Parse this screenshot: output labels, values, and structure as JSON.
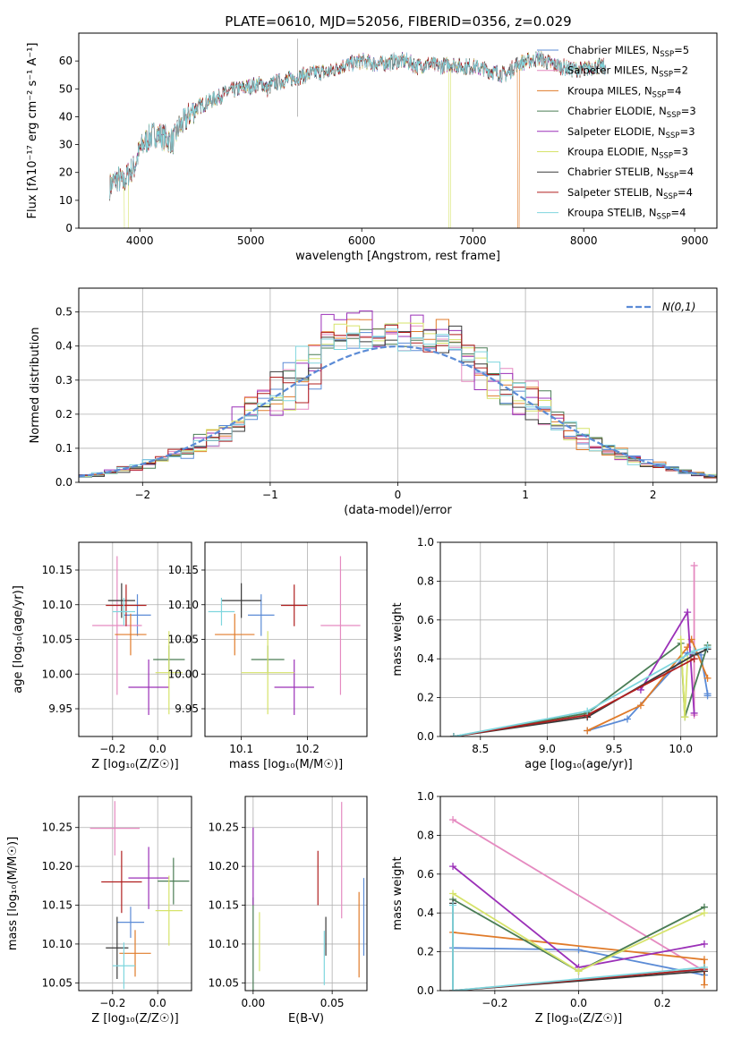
{
  "title": "PLATE=0610, MJD=52056, FIBERID=0356, z=0.029",
  "colors": {
    "Chabrier MILES": "#5b8bd6",
    "Salpeter MILES": "#e58ac0",
    "Kroupa MILES": "#e07b2a",
    "Chabrier ELODIE": "#4a7d55",
    "Salpeter ELODIE": "#9b30b8",
    "Kroupa ELODIE": "#d6e36a",
    "Chabrier STELIB": "#3a3a3a",
    "Salpeter STELIB": "#b01f1f",
    "Kroupa STELIB": "#7fd6de",
    "gauss": "#5b8bd6"
  },
  "chart_data": [
    {
      "id": "spectrum",
      "type": "line",
      "title": "PLATE=0610, MJD=52056, FIBERID=0356, z=0.029",
      "xlabel": "wavelength [Angstrom, rest frame]",
      "ylabel": "Flux [fλ10⁻¹⁷ erg cm⁻² s⁻¹ A⁻¹]",
      "xlim": [
        3450,
        9200
      ],
      "ylim": [
        0,
        70
      ],
      "xticks": [
        4000,
        5000,
        6000,
        7000,
        8000,
        9000
      ],
      "yticks": [
        0,
        10,
        20,
        30,
        40,
        50,
        60
      ],
      "legend_position": "upper right",
      "series": [
        {
          "name": "Chabrier MILES, N",
          "nssp": "5"
        },
        {
          "name": "Salpeter MILES, N",
          "nssp": "2"
        },
        {
          "name": "Kroupa MILES, N",
          "nssp": "4"
        },
        {
          "name": "Chabrier ELODIE, N",
          "nssp": "3"
        },
        {
          "name": "Salpeter ELODIE, N",
          "nssp": "3"
        },
        {
          "name": "Kroupa ELODIE, N",
          "nssp": "3"
        },
        {
          "name": "Chabrier STELIB, N",
          "nssp": "4"
        },
        {
          "name": "Salpeter STELIB, N",
          "nssp": "4"
        },
        {
          "name": "Kroupa STELIB, N",
          "nssp": "4"
        }
      ],
      "envelope": {
        "x": [
          3730,
          3800,
          3850,
          3900,
          3950,
          4000,
          4050,
          4100,
          4150,
          4200,
          4250,
          4300,
          4350,
          4400,
          4450,
          4500,
          4600,
          4700,
          4800,
          4900,
          5000,
          5100,
          5150,
          5200,
          5300,
          5400,
          5500,
          5600,
          5700,
          5800,
          5900,
          6000,
          6100,
          6200,
          6300,
          6400,
          6500,
          6600,
          6700,
          6800,
          6900,
          7000,
          7100,
          7200,
          7300,
          7400,
          7500,
          7600,
          7700,
          7800,
          7900,
          8000,
          8100,
          8200
        ],
        "y": [
          15,
          18,
          16,
          20,
          22,
          28,
          31,
          33,
          34,
          33,
          32,
          31,
          36,
          38,
          41,
          43,
          45,
          47,
          49,
          50,
          51,
          52,
          50,
          52,
          53,
          54,
          55,
          56,
          56,
          58,
          59,
          60,
          59,
          59,
          60,
          60,
          58,
          59,
          58,
          59,
          58,
          58,
          57,
          56,
          55,
          59,
          60,
          61,
          59,
          58,
          57,
          57,
          58,
          58
        ]
      },
      "drops": [
        {
          "series": "Kroupa ELODIE",
          "x_from": 3860,
          "x_to": 3895
        },
        {
          "series": "Kroupa ELODIE",
          "x_from": 6785,
          "x_to": 6800
        },
        {
          "series": "Kroupa MILES",
          "x_from": 7405,
          "x_to": 7420
        }
      ]
    },
    {
      "id": "residuals",
      "type": "histogram",
      "xlabel": "(data-model)/error",
      "ylabel": "Normed distribution",
      "xlim": [
        -2.5,
        2.5
      ],
      "ylim": [
        0,
        0.57
      ],
      "xticks": [
        -2,
        -1,
        0,
        1,
        2
      ],
      "yticks": [
        0.0,
        0.1,
        0.2,
        0.3,
        0.4,
        0.5
      ],
      "gauss_label": "N(0,1)",
      "bin_width": 0.1,
      "peak_heights": [
        0.44,
        0.47,
        0.49,
        0.43,
        0.51,
        0.47,
        0.46,
        0.44,
        0.45
      ],
      "legend_position": "upper right",
      "grid": true
    },
    {
      "id": "age_vs_Z",
      "type": "errorbar",
      "xlabel": "Z [log₁₀(Z/Z☉)]",
      "ylabel": "age  [log₁₀(age/yr)]",
      "xlim": [
        -0.35,
        0.15
      ],
      "ylim": [
        9.91,
        10.19
      ],
      "xticks": [
        -0.2,
        0.0
      ],
      "yticks": [
        9.95,
        10.0,
        10.05,
        10.1,
        10.15
      ],
      "points": [
        {
          "series": "Chabrier MILES",
          "x": -0.09,
          "xe": 0.06,
          "y": 10.085,
          "ye": 0.03
        },
        {
          "series": "Salpeter MILES",
          "x": -0.18,
          "xe": 0.11,
          "y": 10.07,
          "ye": 0.1
        },
        {
          "series": "Kroupa MILES",
          "x": -0.12,
          "xe": 0.07,
          "y": 10.057,
          "ye": 0.03
        },
        {
          "series": "Chabrier ELODIE",
          "x": 0.05,
          "xe": 0.07,
          "y": 10.021,
          "ye": 0.02
        },
        {
          "series": "Salpeter ELODIE",
          "x": -0.04,
          "xe": 0.09,
          "y": 9.981,
          "ye": 0.04
        },
        {
          "series": "Kroupa ELODIE",
          "x": 0.05,
          "xe": 0.06,
          "y": 10.002,
          "ye": 0.06
        },
        {
          "series": "Chabrier STELIB",
          "x": -0.16,
          "xe": 0.06,
          "y": 10.106,
          "ye": 0.025
        },
        {
          "series": "Salpeter STELIB",
          "x": -0.14,
          "xe": 0.09,
          "y": 10.099,
          "ye": 0.03
        },
        {
          "series": "Kroupa STELIB",
          "x": -0.15,
          "xe": 0.05,
          "y": 10.09,
          "ye": 0.02
        }
      ]
    },
    {
      "id": "age_vs_mass",
      "type": "errorbar",
      "xlabel": "mass [log₁₀(M/M☉)]",
      "ylabel": "",
      "xlim": [
        10.045,
        10.29
      ],
      "ylim": [
        9.91,
        10.19
      ],
      "xticks": [
        10.1,
        10.2
      ],
      "yticks": [
        9.95,
        10.0,
        10.05,
        10.1,
        10.15
      ],
      "points": [
        {
          "series": "Chabrier MILES",
          "x": 10.13,
          "xe": 0.02,
          "y": 10.085,
          "ye": 0.03
        },
        {
          "series": "Salpeter MILES",
          "x": 10.25,
          "xe": 0.03,
          "y": 10.07,
          "ye": 0.1
        },
        {
          "series": "Kroupa MILES",
          "x": 10.09,
          "xe": 0.03,
          "y": 10.057,
          "ye": 0.03
        },
        {
          "series": "Chabrier ELODIE",
          "x": 10.14,
          "xe": 0.025,
          "y": 10.021,
          "ye": 0.02
        },
        {
          "series": "Salpeter ELODIE",
          "x": 10.18,
          "xe": 0.03,
          "y": 9.981,
          "ye": 0.04
        },
        {
          "series": "Kroupa ELODIE",
          "x": 10.14,
          "xe": 0.04,
          "y": 10.002,
          "ye": 0.06
        },
        {
          "series": "Chabrier STELIB",
          "x": 10.1,
          "xe": 0.03,
          "y": 10.106,
          "ye": 0.025
        },
        {
          "series": "Salpeter STELIB",
          "x": 10.18,
          "xe": 0.02,
          "y": 10.099,
          "ye": 0.03
        },
        {
          "series": "Kroupa STELIB",
          "x": 10.07,
          "xe": 0.02,
          "y": 10.09,
          "ye": 0.02
        }
      ]
    },
    {
      "id": "weight_vs_age",
      "type": "line",
      "xlabel": "age  [log₁₀(age/yr)]",
      "ylabel": "mass weight",
      "xlim": [
        8.2,
        10.27
      ],
      "ylim": [
        0,
        1.0
      ],
      "xticks": [
        8.5,
        9.0,
        9.5,
        10.0
      ],
      "yticks": [
        0.0,
        0.2,
        0.4,
        0.6,
        0.8,
        1.0
      ],
      "grid": true,
      "series": [
        {
          "name": "Chabrier MILES",
          "points": [
            [
              9.3,
              0.03
            ],
            [
              9.6,
              0.09
            ],
            [
              10.05,
              0.43
            ],
            [
              10.1,
              0.43
            ],
            [
              10.15,
              0.42
            ],
            [
              10.2,
              0.22
            ],
            [
              10.2,
              0.21
            ]
          ]
        },
        {
          "name": "Salpeter MILES",
          "points": [
            [
              10.1,
              0.11
            ],
            [
              10.1,
              0.88
            ]
          ]
        },
        {
          "name": "Kroupa MILES",
          "points": [
            [
              9.3,
              0.03
            ],
            [
              9.7,
              0.16
            ],
            [
              10.05,
              0.46
            ],
            [
              10.08,
              0.5
            ],
            [
              10.2,
              0.3
            ]
          ]
        },
        {
          "name": "Chabrier ELODIE",
          "points": [
            [
              8.3,
              0.0
            ],
            [
              9.3,
              0.12
            ],
            [
              10.0,
              0.48
            ],
            [
              10.03,
              0.1
            ],
            [
              10.2,
              0.47
            ]
          ]
        },
        {
          "name": "Salpeter ELODIE",
          "points": [
            [
              9.7,
              0.24
            ],
            [
              10.05,
              0.64
            ],
            [
              10.1,
              0.12
            ]
          ]
        },
        {
          "name": "Kroupa ELODIE",
          "points": [
            [
              10.0,
              0.5
            ],
            [
              10.03,
              0.1
            ],
            [
              10.05,
              0.4
            ]
          ]
        },
        {
          "name": "Chabrier STELIB",
          "points": [
            [
              8.3,
              0.0
            ],
            [
              9.3,
              0.1
            ],
            [
              10.1,
              0.42
            ],
            [
              10.2,
              0.45
            ]
          ]
        },
        {
          "name": "Salpeter STELIB",
          "points": [
            [
              8.3,
              0.0
            ],
            [
              9.3,
              0.11
            ],
            [
              10.1,
              0.4
            ]
          ]
        },
        {
          "name": "Kroupa STELIB",
          "points": [
            [
              8.3,
              0.0
            ],
            [
              9.3,
              0.13
            ],
            [
              10.1,
              0.44
            ],
            [
              10.2,
              0.46
            ]
          ]
        }
      ]
    },
    {
      "id": "mass_vs_Z",
      "type": "errorbar",
      "xlabel": "Z [log₁₀(Z/Z☉)]",
      "ylabel": "mass [log₁₀(M/M☉)]",
      "xlim": [
        -0.35,
        0.15
      ],
      "ylim": [
        10.04,
        10.29
      ],
      "xticks": [
        -0.2,
        0.0
      ],
      "yticks": [
        10.05,
        10.1,
        10.15,
        10.2,
        10.25
      ],
      "points": [
        {
          "series": "Chabrier MILES",
          "x": -0.12,
          "xe": 0.06,
          "y": 10.128,
          "ye": 0.02
        },
        {
          "series": "Salpeter MILES",
          "x": -0.19,
          "xe": 0.11,
          "y": 10.249,
          "ye": 0.035
        },
        {
          "series": "Kroupa MILES",
          "x": -0.1,
          "xe": 0.07,
          "y": 10.088,
          "ye": 0.03
        },
        {
          "series": "Chabrier ELODIE",
          "x": 0.07,
          "xe": 0.07,
          "y": 10.181,
          "ye": 0.03
        },
        {
          "series": "Salpeter ELODIE",
          "x": -0.04,
          "xe": 0.09,
          "y": 10.185,
          "ye": 0.04
        },
        {
          "series": "Kroupa ELODIE",
          "x": 0.05,
          "xe": 0.06,
          "y": 10.143,
          "ye": 0.045
        },
        {
          "series": "Chabrier STELIB",
          "x": -0.18,
          "xe": 0.05,
          "y": 10.095,
          "ye": 0.04
        },
        {
          "series": "Salpeter STELIB",
          "x": -0.16,
          "xe": 0.09,
          "y": 10.18,
          "ye": 0.04
        },
        {
          "series": "Kroupa STELIB",
          "x": -0.15,
          "xe": 0.05,
          "y": 10.072,
          "ye": 0.03
        }
      ]
    },
    {
      "id": "mass_vs_EBV",
      "type": "errorbar",
      "xlabel": "E(B-V)",
      "ylabel": "",
      "xlim": [
        -0.005,
        0.072
      ],
      "ylim": [
        10.04,
        10.29
      ],
      "xticks": [
        0.0,
        0.05
      ],
      "yticks": [
        10.05,
        10.1,
        10.15,
        10.2,
        10.25
      ],
      "points": [
        {
          "series": "Chabrier MILES",
          "x": 0.07,
          "xe": 0,
          "y": 10.135,
          "ye": 0.05
        },
        {
          "series": "Salpeter MILES",
          "x": 0.056,
          "xe": 0,
          "y": 10.208,
          "ye": 0.075
        },
        {
          "series": "Kroupa MILES",
          "x": 0.067,
          "xe": 0,
          "y": 10.112,
          "ye": 0.055
        },
        {
          "series": "Chabrier ELODIE",
          "x": 0.0,
          "xe": 0,
          "y": 10.1,
          "ye": 0.06
        },
        {
          "series": "Salpeter ELODIE",
          "x": 0.0,
          "xe": 0,
          "y": 10.2,
          "ye": 0.05
        },
        {
          "series": "Kroupa ELODIE",
          "x": 0.004,
          "xe": 0,
          "y": 10.103,
          "ye": 0.038
        },
        {
          "series": "Chabrier STELIB",
          "x": 0.046,
          "xe": 0,
          "y": 10.11,
          "ye": 0.025
        },
        {
          "series": "Salpeter STELIB",
          "x": 0.041,
          "xe": 0,
          "y": 10.185,
          "ye": 0.035
        },
        {
          "series": "Kroupa STELIB",
          "x": 0.045,
          "xe": 0,
          "y": 10.082,
          "ye": 0.035
        }
      ]
    },
    {
      "id": "weight_vs_Z",
      "type": "line",
      "xlabel": "Z [log₁₀(Z/Z☉)]",
      "ylabel": "mass weight",
      "xlim": [
        -0.33,
        0.33
      ],
      "ylim": [
        0,
        1.0
      ],
      "xticks": [
        -0.2,
        0.0,
        0.2
      ],
      "yticks": [
        0.0,
        0.2,
        0.4,
        0.6,
        0.8,
        1.0
      ],
      "grid": true,
      "series": [
        {
          "name": "Chabrier MILES",
          "points": [
            [
              -0.3,
              0.22
            ],
            [
              0.0,
              0.21
            ],
            [
              0.3,
              0.08
            ]
          ]
        },
        {
          "name": "Salpeter MILES",
          "points": [
            [
              -0.3,
              0.88
            ],
            [
              0.3,
              0.1
            ]
          ]
        },
        {
          "name": "Kroupa MILES",
          "points": [
            [
              -0.3,
              0.3
            ],
            [
              0.3,
              0.16
            ],
            [
              0.3,
              0.03
            ]
          ]
        },
        {
          "name": "Chabrier ELODIE",
          "points": [
            [
              -0.3,
              0.47
            ],
            [
              0.0,
              0.1
            ],
            [
              0.3,
              0.43
            ]
          ]
        },
        {
          "name": "Salpeter ELODIE",
          "points": [
            [
              -0.3,
              0.64
            ],
            [
              0.0,
              0.12
            ],
            [
              0.3,
              0.24
            ]
          ]
        },
        {
          "name": "Kroupa ELODIE",
          "points": [
            [
              -0.3,
              0.5
            ],
            [
              0.0,
              0.1
            ],
            [
              0.3,
              0.4
            ]
          ]
        },
        {
          "name": "Chabrier STELIB",
          "points": [
            [
              -0.3,
              0.45
            ],
            [
              -0.3,
              0.0
            ],
            [
              0.3,
              0.1
            ]
          ]
        },
        {
          "name": "Salpeter STELIB",
          "points": [
            [
              -0.3,
              0.0
            ],
            [
              0.3,
              0.11
            ]
          ]
        },
        {
          "name": "Kroupa STELIB",
          "points": [
            [
              -0.3,
              0.44
            ],
            [
              -0.3,
              0.0
            ],
            [
              0.3,
              0.12
            ]
          ]
        }
      ]
    }
  ]
}
